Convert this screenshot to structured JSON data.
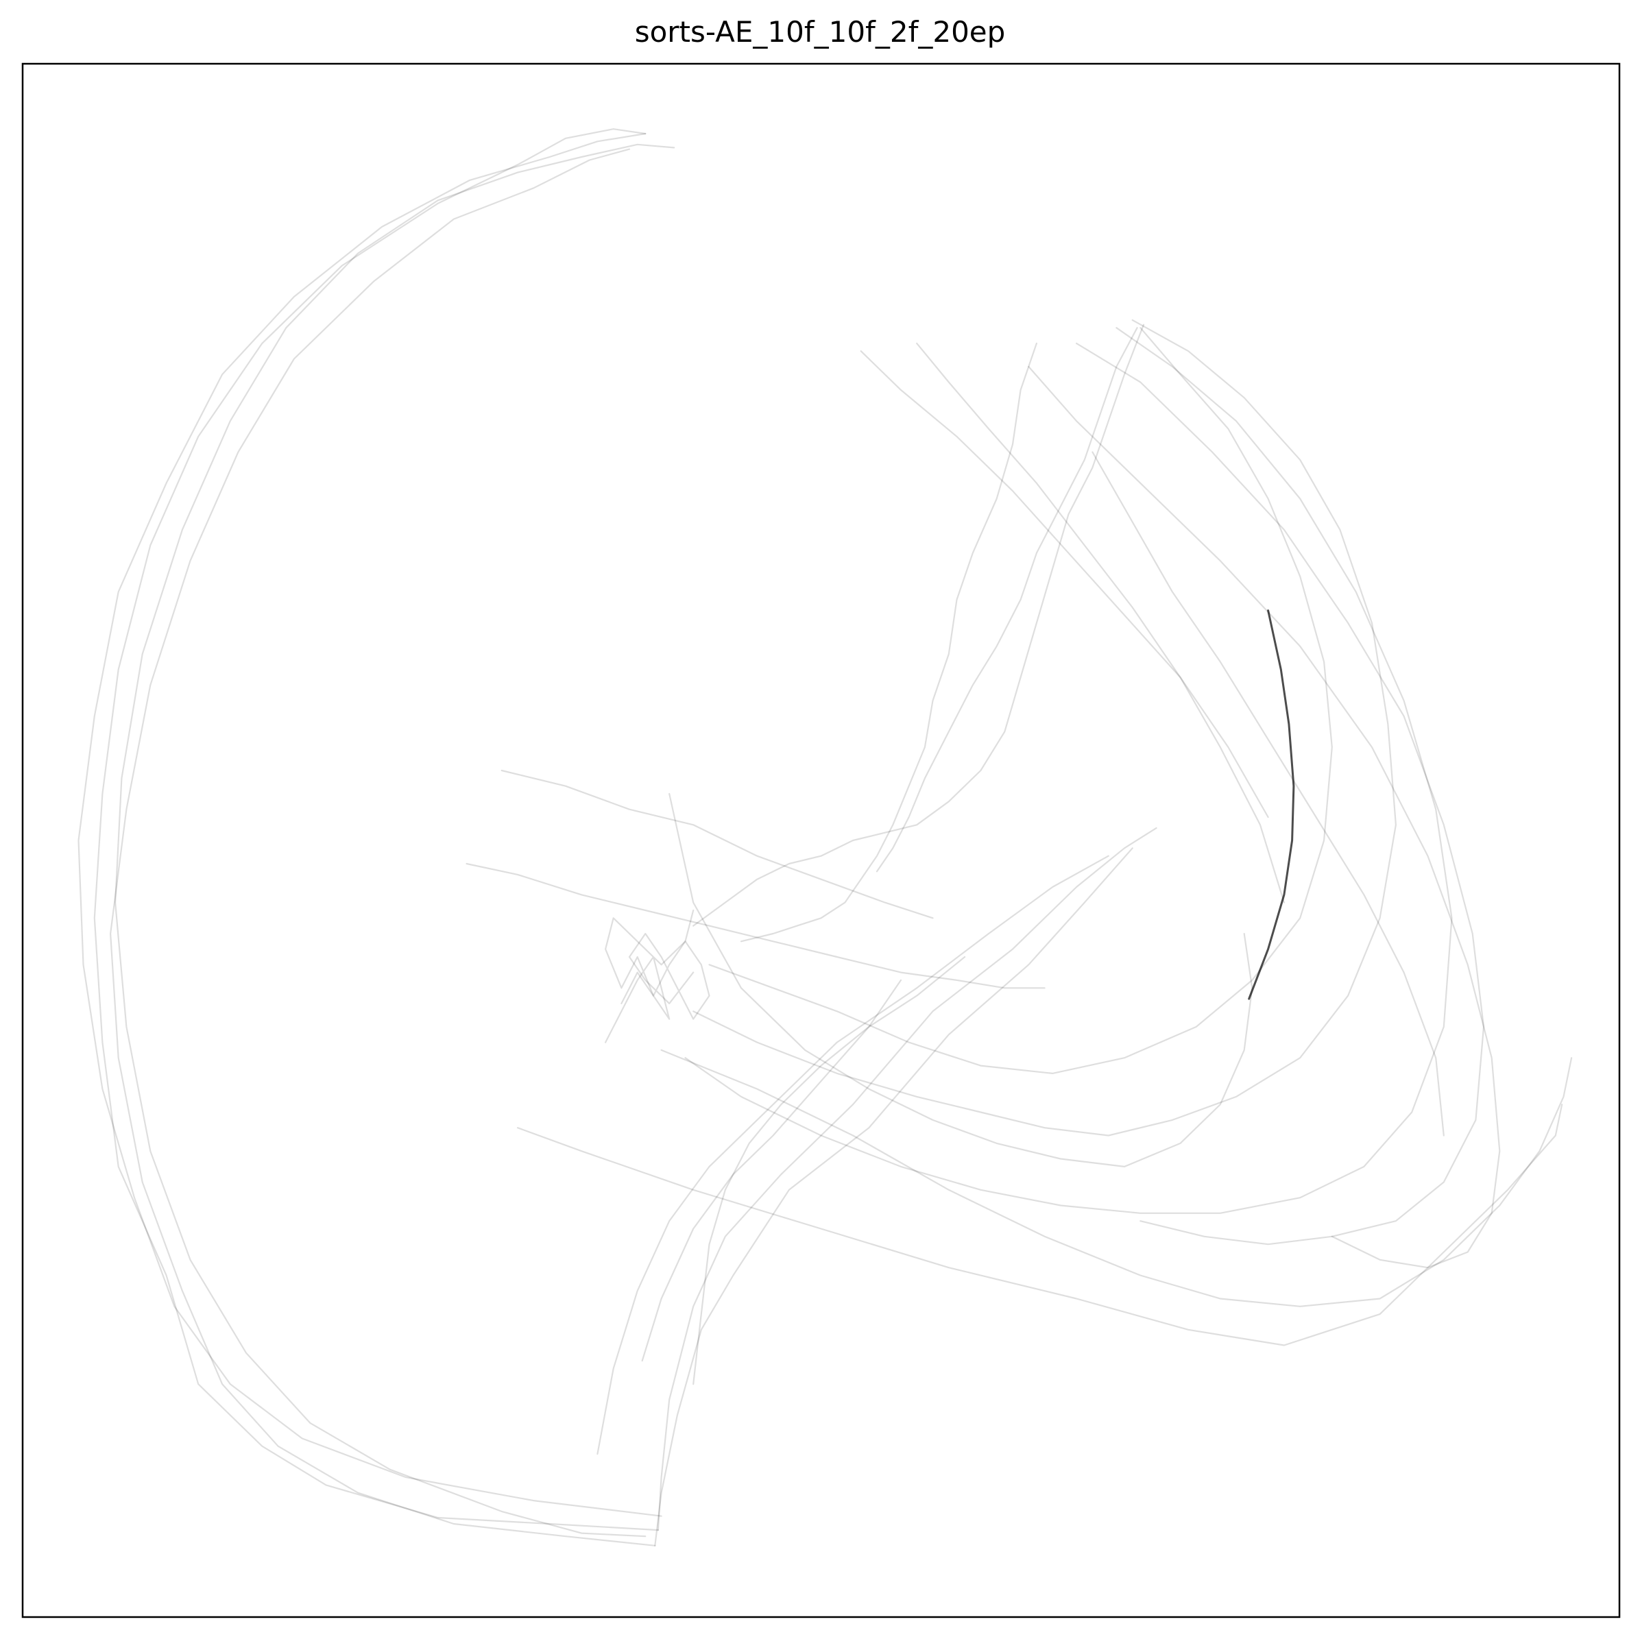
{
  "chart_data": {
    "type": "line",
    "title": "sorts-AE_10f_10f_2f_20ep",
    "xlabel": "",
    "ylabel": "",
    "xlim": [
      0,
      100
    ],
    "ylim": [
      0,
      100
    ],
    "axis_ticks": "none",
    "grid": false,
    "legend": "none",
    "line_color": "#000000",
    "background_alpha": 0.13,
    "highlight_alpha": 0.7,
    "series": [
      {
        "style": "background",
        "x": [
          39.8,
          33.0,
          26.0,
          19.0,
          15.0,
          11.0,
          9.0,
          6.0,
          5.0,
          4.5,
          5.0,
          6.0,
          8.0,
          11.0,
          15.0,
          20.0,
          26.0,
          31.0,
          34.0,
          37.0,
          39.0
        ],
        "y": [
          5.6,
          6.0,
          6.4,
          8.5,
          11.0,
          15.0,
          22.0,
          29.0,
          37.0,
          45.0,
          53.0,
          61.0,
          69.0,
          76.0,
          82.0,
          87.0,
          91.0,
          93.5,
          95.2,
          95.8,
          95.5
        ]
      },
      {
        "style": "background",
        "x": [
          39.6,
          34.0,
          27.0,
          21.0,
          16.0,
          12.5,
          10.0,
          7.5,
          6.0,
          5.5,
          6.5,
          8.0,
          10.5,
          13.5,
          17.0,
          22.0,
          27.0,
          32.0,
          35.5,
          38.0
        ],
        "y": [
          4.6,
          5.2,
          6.0,
          8.0,
          11.0,
          15.0,
          21.0,
          28.0,
          36.0,
          44.0,
          52.0,
          60.0,
          68.0,
          75.0,
          81.0,
          86.0,
          90.0,
          92.0,
          93.8,
          94.5
        ]
      },
      {
        "style": "background",
        "x": [
          40.0,
          32.0,
          24.0,
          17.5,
          13.0,
          9.5,
          7.0,
          5.0,
          3.8,
          3.5,
          4.5,
          6.0,
          9.0,
          12.5,
          17.0,
          22.5,
          28.0,
          33.0,
          36.0,
          39.0
        ],
        "y": [
          6.5,
          7.5,
          9.0,
          11.5,
          15.0,
          20.0,
          27.0,
          34.0,
          42.0,
          50.0,
          58.0,
          66.0,
          73.0,
          80.0,
          85.0,
          89.5,
          92.5,
          94.0,
          95.0,
          95.5
        ]
      },
      {
        "style": "background",
        "x": [
          39.0,
          35.0,
          30.0,
          23.0,
          18.0,
          14.0,
          10.5,
          8.0,
          6.5,
          5.8,
          6.2,
          7.5,
          10.0,
          13.0,
          16.5,
          21.0,
          26.0,
          31.0,
          35.0,
          38.5,
          40.8
        ],
        "y": [
          5.2,
          5.4,
          6.8,
          9.5,
          12.5,
          17.0,
          23.0,
          30.0,
          38.0,
          46.0,
          54.0,
          62.0,
          70.0,
          77.0,
          83.0,
          87.8,
          91.2,
          93.0,
          94.0,
          94.8,
          94.6
        ]
      },
      {
        "style": "background",
        "x": [
          39.8,
          40.0,
          40.5,
          42.0,
          44.0,
          47.5,
          52.0,
          57.0,
          62.0,
          66.0,
          69.0,
          71.0
        ],
        "y": [
          5.6,
          9.0,
          14.0,
          20.0,
          24.5,
          28.5,
          33.0,
          39.0,
          43.0,
          47.0,
          49.5,
          50.8
        ]
      },
      {
        "style": "background",
        "x": [
          39.6,
          40.0,
          41.0,
          42.5,
          44.5,
          48.0,
          53.0,
          58.0,
          63.0,
          66.5,
          69.5
        ],
        "y": [
          4.6,
          8.0,
          13.0,
          18.5,
          22.0,
          27.5,
          31.5,
          37.5,
          42.0,
          46.0,
          49.5
        ]
      },
      {
        "style": "background",
        "x": [
          36.0,
          37.0,
          38.5,
          40.5,
          43.0,
          47.0,
          51.0,
          56.0,
          60.5,
          64.5,
          68.0
        ],
        "y": [
          10.5,
          16.0,
          21.0,
          25.5,
          29.0,
          33.0,
          37.0,
          40.5,
          44.0,
          47.0,
          49.0
        ]
      },
      {
        "style": "background",
        "x": [
          42.0,
          42.5,
          43.0,
          44.0,
          45.5,
          47.5,
          50.0,
          53.0,
          56.0,
          59.0
        ],
        "y": [
          15.0,
          19.5,
          24.0,
          27.5,
          30.5,
          33.0,
          35.5,
          38.0,
          40.0,
          42.5
        ]
      },
      {
        "style": "background",
        "x": [
          38.8,
          40.0,
          42.0,
          44.5,
          47.0,
          50.0,
          53.0,
          55.0
        ],
        "y": [
          16.5,
          20.5,
          25.0,
          28.5,
          31.0,
          34.5,
          38.0,
          41.0
        ]
      },
      {
        "style": "background",
        "x": [
          31.0,
          35.0,
          42.0,
          50.0,
          58.0,
          66.0,
          73.0,
          79.0,
          85.0,
          89.0,
          93.0,
          96.0,
          96.4
        ],
        "y": [
          31.5,
          30.0,
          27.5,
          25.0,
          22.5,
          20.5,
          18.5,
          17.5,
          19.5,
          23.5,
          27.5,
          31.0,
          33.0
        ]
      },
      {
        "style": "background",
        "x": [
          40.0,
          46.0,
          52.0,
          58.0,
          64.0,
          70.0,
          75.0,
          80.0,
          85.0,
          89.0,
          92.5,
          95.0,
          96.5,
          97.0
        ],
        "y": [
          36.5,
          34.0,
          31.0,
          27.5,
          24.5,
          22.0,
          20.5,
          20.0,
          20.5,
          23.0,
          26.5,
          30.0,
          33.5,
          36.0
        ]
      },
      {
        "style": "background",
        "x": [
          63.0,
          66.0,
          70.0,
          75.0,
          80.0,
          84.5,
          88.0,
          90.5,
          92.0,
          92.5,
          92.0,
          90.5,
          88.0,
          85.0,
          82.0
        ],
        "y": [
          80.5,
          77.0,
          73.0,
          68.0,
          62.5,
          56.0,
          49.0,
          42.0,
          36.0,
          30.0,
          26.0,
          23.5,
          22.5,
          23.0,
          24.5
        ]
      },
      {
        "style": "background",
        "x": [
          66.0,
          70.0,
          74.5,
          79.0,
          83.0,
          86.5,
          89.0,
          90.8,
          91.5,
          91.0,
          89.0,
          86.0,
          82.0,
          78.0,
          74.0,
          70.0
        ],
        "y": [
          82.0,
          79.5,
          75.0,
          70.0,
          64.0,
          58.0,
          51.0,
          44.0,
          38.0,
          32.0,
          28.0,
          25.5,
          24.5,
          24.0,
          24.5,
          25.5
        ]
      },
      {
        "style": "background",
        "x": [
          68.5,
          72.0,
          76.0,
          80.0,
          83.5,
          86.5,
          88.5,
          89.5,
          89.0,
          87.0,
          84.0,
          80.0,
          75.0,
          70.0,
          65.0,
          60.0,
          55.0,
          50.0,
          45.0,
          41.5
        ],
        "y": [
          83.0,
          80.5,
          77.0,
          72.0,
          66.0,
          59.0,
          52.0,
          45.0,
          38.0,
          32.5,
          29.0,
          27.0,
          26.0,
          26.0,
          26.5,
          27.5,
          29.0,
          31.0,
          33.5,
          36.0
        ]
      },
      {
        "style": "background",
        "x": [
          69.5,
          73.0,
          76.5,
          80.0,
          82.5,
          84.5,
          85.5,
          86.0,
          85.0,
          83.0,
          80.0,
          76.0,
          72.0,
          68.0,
          64.0,
          60.0,
          56.0,
          51.0,
          46.0,
          42.0
        ],
        "y": [
          83.5,
          81.5,
          78.5,
          74.5,
          70.0,
          64.0,
          57.5,
          51.0,
          45.0,
          40.0,
          36.0,
          33.5,
          32.0,
          31.0,
          31.5,
          32.5,
          33.5,
          35.0,
          37.0,
          39.0
        ]
      },
      {
        "style": "background",
        "x": [
          70.0,
          72.5,
          75.5,
          78.0,
          80.0,
          81.5,
          82.0,
          81.5,
          80.0,
          77.0,
          73.5,
          69.0,
          64.5,
          60.0,
          55.5,
          51.0,
          47.0,
          43.0
        ],
        "y": [
          83.0,
          80.0,
          76.5,
          72.0,
          67.0,
          61.5,
          56.0,
          50.0,
          45.0,
          41.0,
          38.0,
          36.0,
          35.0,
          35.5,
          37.0,
          39.0,
          40.5,
          42.0
        ]
      },
      {
        "style": "background",
        "x": [
          70.2,
          69.0,
          68.0,
          67.0,
          65.5,
          64.5,
          63.5,
          62.5,
          61.5,
          60.0,
          58.0,
          56.0,
          54.0,
          52.0,
          50.0,
          48.0,
          46.0,
          44.0,
          42.0
        ],
        "y": [
          83.2,
          80.0,
          77.0,
          74.0,
          71.0,
          67.5,
          64.0,
          60.5,
          57.0,
          54.5,
          52.5,
          51.0,
          50.5,
          50.0,
          49.0,
          48.5,
          47.5,
          46.0,
          44.5
        ]
      },
      {
        "style": "background",
        "x": [
          69.8,
          68.5,
          67.5,
          66.5,
          65.0,
          63.5,
          62.5,
          61.0,
          59.5,
          58.0,
          56.5,
          55.5,
          54.5,
          53.5
        ],
        "y": [
          83.0,
          80.5,
          77.5,
          74.5,
          71.5,
          68.5,
          65.5,
          62.5,
          60.0,
          57.0,
          54.0,
          51.5,
          49.5,
          48.0
        ]
      },
      {
        "style": "background",
        "x": [
          63.5,
          62.5,
          62.0,
          61.0,
          59.5,
          58.5,
          58.0,
          57.0,
          56.5,
          55.5,
          54.5,
          53.5,
          52.5,
          51.5,
          50.0,
          48.5,
          47.0,
          45.0
        ],
        "y": [
          82.0,
          79.0,
          75.5,
          72.0,
          68.5,
          65.5,
          62.0,
          59.0,
          56.0,
          53.5,
          51.0,
          49.0,
          47.5,
          46.0,
          45.0,
          44.5,
          44.0,
          43.5
        ]
      },
      {
        "style": "background",
        "x": [
          40.5,
          42.0,
          45.0,
          49.0,
          53.0,
          57.0,
          61.0,
          65.0,
          69.0,
          72.5,
          75.0,
          76.5,
          77.0,
          76.5
        ],
        "y": [
          53.0,
          46.0,
          40.5,
          36.5,
          34.0,
          32.0,
          30.5,
          29.5,
          29.0,
          30.5,
          33.0,
          36.5,
          40.5,
          44.0
        ]
      },
      {
        "style": "background",
        "x": [
          27.8,
          31.0,
          35.0,
          39.0,
          43.0,
          47.0,
          51.0,
          55.0,
          58.5,
          61.5,
          64.0
        ],
        "y": [
          48.5,
          47.8,
          46.5,
          45.5,
          44.5,
          43.5,
          42.5,
          41.5,
          41.0,
          40.5,
          40.5
        ]
      },
      {
        "style": "background",
        "x": [
          30.0,
          34.0,
          38.0,
          42.0,
          46.0,
          50.0,
          54.0,
          57.0
        ],
        "y": [
          54.5,
          53.5,
          52.0,
          51.0,
          49.0,
          47.5,
          46.0,
          45.0
        ]
      },
      {
        "style": "background",
        "x": [
          52.5,
          55.0,
          58.5,
          62.0,
          65.5,
          69.0,
          72.5,
          75.5,
          78.0
        ],
        "y": [
          81.5,
          79.0,
          76.0,
          72.5,
          68.5,
          64.5,
          60.5,
          56.0,
          51.5
        ]
      },
      {
        "style": "background",
        "x": [
          56.0,
          58.0,
          60.5,
          63.5,
          66.5,
          69.5,
          72.5,
          75.0,
          77.5,
          79.0
        ],
        "y": [
          82.0,
          79.5,
          76.5,
          73.0,
          69.0,
          65.0,
          60.5,
          56.0,
          51.0,
          46.0
        ]
      },
      {
        "style": "background",
        "x": [
          67.0,
          69.5,
          72.0,
          75.0,
          78.0,
          81.0,
          84.0,
          86.5,
          88.5,
          89.0
        ],
        "y": [
          75.0,
          70.5,
          66.0,
          61.5,
          56.5,
          51.5,
          46.5,
          41.5,
          36.0,
          31.0
        ]
      },
      {
        "style": "background",
        "x": [
          36.5,
          37.5,
          38.5,
          39.5,
          40.0,
          40.5,
          39.5,
          38.5,
          37.5,
          36.5,
          37.0,
          38.5,
          40.0,
          41.5,
          42.0
        ],
        "y": [
          37.0,
          39.0,
          41.0,
          42.5,
          40.5,
          38.5,
          40.0,
          42.5,
          40.5,
          43.0,
          45.0,
          43.5,
          42.0,
          43.5,
          45.5
        ]
      },
      {
        "style": "background",
        "x": [
          37.5,
          38.5,
          39.5,
          40.5,
          41.5,
          42.5,
          43.0,
          42.0,
          41.0,
          40.0,
          39.0,
          38.0,
          39.0,
          40.5,
          42.0
        ],
        "y": [
          39.5,
          41.5,
          40.0,
          42.0,
          43.5,
          42.0,
          40.0,
          38.5,
          40.5,
          42.5,
          44.0,
          42.5,
          41.0,
          39.5,
          41.5
        ]
      },
      {
        "style": "highlight",
        "x": [
          78.0,
          78.8,
          79.3,
          79.6,
          79.5,
          79.0,
          78.0,
          76.8
        ],
        "y": [
          64.8,
          61.0,
          57.5,
          53.5,
          50.0,
          46.5,
          43.0,
          39.8
        ]
      }
    ]
  }
}
